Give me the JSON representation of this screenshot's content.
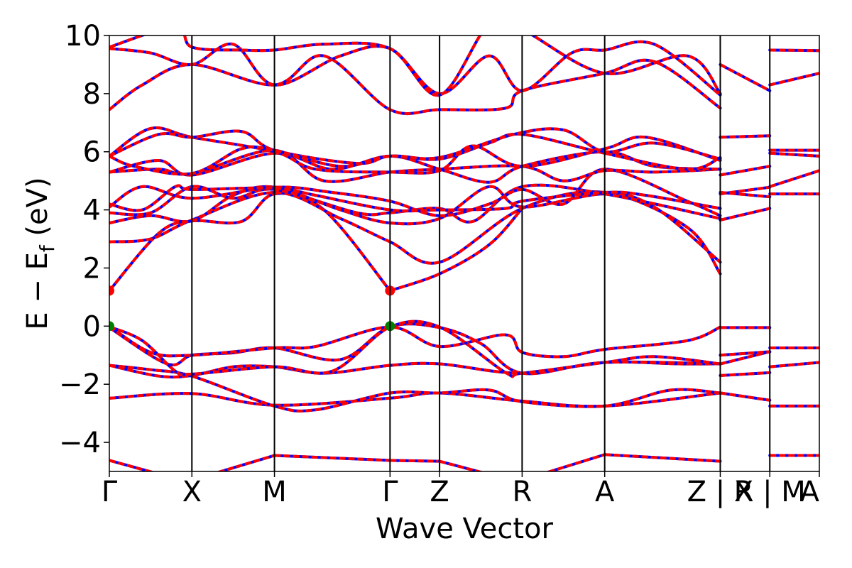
{
  "chart_data": {
    "type": "line",
    "title": "",
    "xlabel": "Wave Vector",
    "ylabel_parts": {
      "lead": "E − E",
      "sub": "f",
      "tail": " (eV)"
    },
    "ylim": [
      -5,
      10
    ],
    "y_ticks": [
      -4,
      -2,
      0,
      2,
      4,
      6,
      8,
      10
    ],
    "y_tick_labels": [
      "−4",
      "−2",
      "0",
      "2",
      "4",
      "6",
      "8",
      "10"
    ],
    "k_ticks": [
      0,
      1,
      2,
      3.4,
      4,
      5,
      6,
      7.4,
      8,
      8.6
    ],
    "k_tick_labels": [
      "Γ",
      "X",
      "M",
      "Γ",
      "Z",
      "R",
      "A",
      "Z | X",
      "R | M",
      "A"
    ],
    "grid": false,
    "band_colors": {
      "dft": "#0000ff",
      "fit": "#ff0000"
    },
    "band_style": "blue solid lines overlaid by red dashed lines",
    "cbm_marker_color": "#ff0000",
    "vbm_marker_color": "#008000",
    "extrema": [
      {
        "kind": "cbm",
        "k": 0,
        "E": 1.22
      },
      {
        "kind": "cbm",
        "k": 3.4,
        "E": 1.22
      },
      {
        "kind": "vbm",
        "k": 0,
        "E": 0.0
      },
      {
        "kind": "vbm",
        "k": 3.4,
        "E": 0.0
      }
    ],
    "series": [
      {
        "k": [
          0,
          1
        ],
        "E": [
          -4.62,
          -5.4
        ]
      },
      {
        "k": [
          1,
          2
        ],
        "E": [
          -5.3,
          -4.45
        ]
      },
      {
        "k": [
          2,
          3.4
        ],
        "E": [
          -4.45,
          -4.62
        ]
      },
      {
        "k": [
          3.4,
          4
        ],
        "E": [
          -4.62,
          -4.65
        ]
      },
      {
        "k": [
          4,
          5
        ],
        "E": [
          -4.65,
          -5.4
        ]
      },
      {
        "k": [
          5,
          6
        ],
        "E": [
          -5.3,
          -4.42
        ]
      },
      {
        "k": [
          6,
          7.4
        ],
        "E": [
          -4.42,
          -4.65
        ]
      },
      {
        "k": [
          0,
          1,
          2,
          3.4,
          4,
          5,
          6,
          7.4
        ],
        "E": [
          -2.48,
          -2.32,
          -2.72,
          -2.48,
          -2.3,
          -2.58,
          -2.75,
          -2.3
        ]
      },
      {
        "k": [
          0,
          0.5,
          1,
          2,
          2.5,
          3.4,
          4,
          4.6,
          5,
          6,
          6.8,
          7.4
        ],
        "E": [
          -1.35,
          -1.5,
          -1.72,
          -2.75,
          -2.88,
          -2.3,
          -2.3,
          -2.2,
          -2.6,
          -2.75,
          -2.2,
          -2.3
        ]
      },
      {
        "k": [
          0,
          0.6,
          1,
          1.5,
          2,
          2.6,
          3.4,
          4,
          5,
          6,
          6.9,
          7.4
        ],
        "E": [
          -1.35,
          -1.72,
          -1.7,
          -1.4,
          -1.4,
          -1.62,
          -1.35,
          -1.3,
          -1.62,
          -1.25,
          -1.3,
          -1.3
        ]
      },
      {
        "k": [
          0,
          0.7,
          1,
          1.5,
          2,
          2.8,
          3.4,
          4,
          4.5,
          5,
          6,
          7.4
        ],
        "E": [
          -0.05,
          -1.3,
          -1.0,
          -0.92,
          -0.75,
          -1.15,
          -0.02,
          -0.05,
          -0.6,
          -1.62,
          -1.25,
          -1.3
        ]
      },
      {
        "k": [
          0,
          0.5,
          1,
          2,
          2.5,
          3.4,
          4,
          4.8,
          5,
          5.5,
          6,
          7.0,
          7.4
        ],
        "E": [
          0,
          -0.9,
          -1.0,
          -0.75,
          -0.7,
          -0.03,
          -0.7,
          -0.3,
          -0.9,
          -1.05,
          -0.8,
          -0.5,
          -0.03
        ]
      },
      {
        "k": [
          0,
          0.4,
          0.8,
          1,
          2,
          2.7,
          3.4,
          4,
          4.8,
          5,
          6,
          6.6,
          7.4
        ],
        "E": [
          -0.02,
          -0.5,
          -1.55,
          -1.65,
          -1.4,
          -1.55,
          -0.03,
          -0.03,
          -1.6,
          -1.62,
          -1.25,
          -1.05,
          -1.3
        ]
      },
      {
        "k": [
          0,
          0.6,
          1,
          1.6,
          2,
          2.6,
          3.4
        ],
        "E": [
          1.22,
          3.2,
          3.62,
          3.6,
          4.55,
          4.0,
          1.22
        ]
      },
      {
        "k": [
          3.4,
          4,
          4.6,
          5
        ],
        "E": [
          1.22,
          1.8,
          2.8,
          4.05
        ]
      },
      {
        "k": [
          0,
          0.5,
          1,
          2,
          2.8,
          3.4,
          4,
          5,
          6,
          7.0,
          7.4
        ],
        "E": [
          2.9,
          3.0,
          3.65,
          4.6,
          3.7,
          2.9,
          2.2,
          4.05,
          4.6,
          3.4,
          1.8
        ]
      },
      {
        "k": [
          0,
          0.5,
          1,
          1.5,
          2,
          2.8,
          3.4,
          4,
          4.6,
          5,
          6,
          6.6,
          7.4
        ],
        "E": [
          3.55,
          3.8,
          3.62,
          4.5,
          4.78,
          4.0,
          3.55,
          3.7,
          4.8,
          4.1,
          4.55,
          4.1,
          2.2
        ]
      },
      {
        "k": [
          0,
          0.5,
          1,
          1.5,
          2,
          3,
          3.4,
          4,
          4.4,
          5,
          6,
          7.4
        ],
        "E": [
          3.9,
          3.9,
          4.8,
          4.4,
          4.7,
          3.9,
          3.9,
          4.05,
          3.6,
          4.8,
          4.55,
          3.7
        ]
      },
      {
        "k": [
          0,
          0.4,
          1,
          2,
          2.7,
          3.4,
          4,
          4.6,
          5,
          5.5,
          6,
          7.0,
          7.4
        ],
        "E": [
          4.1,
          4.8,
          4.4,
          4.78,
          4.6,
          4.3,
          3.8,
          4.2,
          4.7,
          4.2,
          5.4,
          4.3,
          3.8
        ]
      },
      {
        "k": [
          0,
          0.4,
          0.8,
          1,
          2,
          2.5,
          3.4,
          4,
          4.8,
          5,
          6,
          6.5,
          7.4
        ],
        "E": [
          4.2,
          4.0,
          4.8,
          4.7,
          4.75,
          4.5,
          4.0,
          4.0,
          4.05,
          4.3,
          4.6,
          4.5,
          4.05
        ]
      },
      {
        "k": [
          0,
          0.6,
          1,
          2,
          2.6,
          3.4,
          4,
          5,
          5.5,
          6,
          6.6,
          7.4
        ],
        "E": [
          5.3,
          5.4,
          5.25,
          6.05,
          5.0,
          5.3,
          5.4,
          5.5,
          5.0,
          5.35,
          5.3,
          5.4
        ]
      },
      {
        "k": [
          0,
          0.6,
          1,
          2,
          2.7,
          3.4,
          4,
          4.6,
          5,
          6,
          6.6,
          7.4
        ],
        "E": [
          5.3,
          5.7,
          5.2,
          5.95,
          5.4,
          5.85,
          5.4,
          4.95,
          5.5,
          6.0,
          5.5,
          5.4
        ]
      },
      {
        "k": [
          0,
          0.5,
          1,
          2,
          2.5,
          3.4,
          4,
          4.4,
          5,
          6,
          6.5,
          7.4
        ],
        "E": [
          5.85,
          6.8,
          6.5,
          6.0,
          5.4,
          5.3,
          5.35,
          6.2,
          5.5,
          6.1,
          6.5,
          5.7
        ]
      },
      {
        "k": [
          0,
          0.6,
          1,
          1.6,
          2,
          3,
          3.4,
          4,
          4.6,
          5,
          6,
          7.0,
          7.4
        ],
        "E": [
          5.85,
          6.6,
          6.5,
          6.7,
          6.05,
          5.6,
          5.85,
          5.75,
          6.3,
          6.6,
          5.95,
          5.4,
          5.8
        ]
      },
      {
        "k": [
          0,
          0.3,
          1,
          1.6,
          2,
          2.8,
          3.4,
          4,
          4.9,
          5.5,
          6,
          6.6,
          7.4
        ],
        "E": [
          5.85,
          5.5,
          5.25,
          6.1,
          6.05,
          5.5,
          5.85,
          5.8,
          6.6,
          6.75,
          6.0,
          6.3,
          5.75
        ]
      },
      {
        "k": [
          0,
          0.4,
          1,
          2,
          2.6,
          3.4,
          4,
          4.8,
          5,
          6,
          6.6,
          7.4
        ],
        "E": [
          7.45,
          8.3,
          9.0,
          8.3,
          9.3,
          7.45,
          7.45,
          7.5,
          8.1,
          8.7,
          9.1,
          7.5
        ]
      },
      {
        "k": [
          0,
          0.5,
          1,
          1.5,
          2,
          2.8,
          3.4,
          4,
          4.6,
          5,
          5.6,
          6,
          6.6,
          7.4
        ],
        "E": [
          9.55,
          9.4,
          9.0,
          9.7,
          8.3,
          9.3,
          9.55,
          8.0,
          9.3,
          8.1,
          9.4,
          9.5,
          9.7,
          7.95
        ]
      },
      {
        "k": [
          0,
          0.8,
          1,
          1.6,
          2,
          2.6,
          3.4,
          4,
          4.6,
          5,
          6,
          7.0,
          7.4
        ],
        "E": [
          9.6,
          10.3,
          9.6,
          9.5,
          9.5,
          9.7,
          9.55,
          7.95,
          10.4,
          10.2,
          8.7,
          9.3,
          8.0
        ]
      },
      {
        "k": [
          7.4,
          8.0
        ],
        "E": [
          -0.05,
          -0.05
        ]
      },
      {
        "k": [
          7.4,
          8.0
        ],
        "E": [
          -1.3,
          -0.88
        ]
      },
      {
        "k": [
          7.4,
          8.0
        ],
        "E": [
          -1.0,
          -0.88
        ]
      },
      {
        "k": [
          7.4,
          8.0
        ],
        "E": [
          -1.7,
          -1.6
        ]
      },
      {
        "k": [
          7.4,
          8.0
        ],
        "E": [
          -2.3,
          -2.55
        ]
      },
      {
        "k": [
          7.4,
          8.0
        ],
        "E": [
          3.65,
          4.05
        ]
      },
      {
        "k": [
          7.4,
          8.0
        ],
        "E": [
          4.55,
          4.78
        ]
      },
      {
        "k": [
          7.4,
          8.0
        ],
        "E": [
          4.6,
          4.45
        ]
      },
      {
        "k": [
          7.4,
          8.0
        ],
        "E": [
          5.2,
          5.5
        ]
      },
      {
        "k": [
          7.4,
          8.0
        ],
        "E": [
          6.5,
          6.55
        ]
      },
      {
        "k": [
          7.4,
          8.0
        ],
        "E": [
          9.0,
          8.1
        ]
      },
      {
        "k": [
          8.0,
          8.6
        ],
        "E": [
          -0.75,
          -0.75
        ]
      },
      {
        "k": [
          8.0,
          8.6
        ],
        "E": [
          -1.4,
          -1.25
        ]
      },
      {
        "k": [
          8.0,
          8.6
        ],
        "E": [
          -2.75,
          -2.75
        ]
      },
      {
        "k": [
          8.0,
          8.6
        ],
        "E": [
          -4.45,
          -4.45
        ]
      },
      {
        "k": [
          8.0,
          8.6
        ],
        "E": [
          4.55,
          4.55
        ]
      },
      {
        "k": [
          8.0,
          8.6
        ],
        "E": [
          4.8,
          5.35
        ]
      },
      {
        "k": [
          8.0,
          8.6
        ],
        "E": [
          5.95,
          5.85
        ]
      },
      {
        "k": [
          8.0,
          8.6
        ],
        "E": [
          6.05,
          6.05
        ]
      },
      {
        "k": [
          8.0,
          8.6
        ],
        "E": [
          8.3,
          8.7
        ]
      },
      {
        "k": [
          8.0,
          8.6
        ],
        "E": [
          9.5,
          9.48
        ]
      }
    ]
  }
}
